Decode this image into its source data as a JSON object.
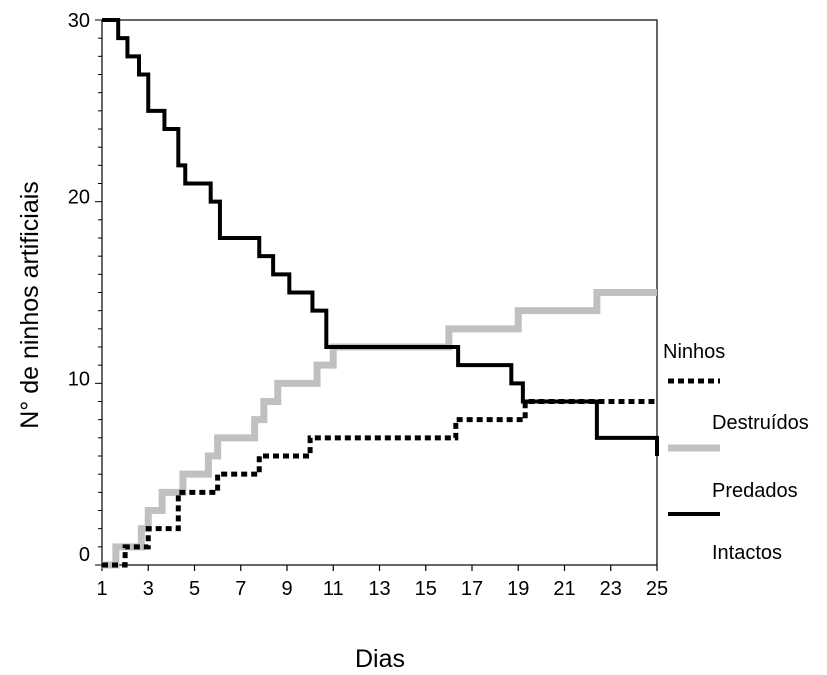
{
  "chart_data": {
    "type": "line",
    "xlabel": "Dias",
    "ylabel": "N° de ninhos artificiais",
    "xlim": [
      1,
      25
    ],
    "ylim": [
      0,
      30
    ],
    "x_ticks": [
      1,
      3,
      5,
      7,
      9,
      11,
      13,
      15,
      17,
      19,
      21,
      23,
      25
    ],
    "y_ticks": [
      0,
      10,
      20,
      30
    ],
    "legend": {
      "title": "Ninhos",
      "placement": "right"
    },
    "series": [
      {
        "name": "Destruídos",
        "style": "dotted",
        "color": "#000000",
        "x": [
          1,
          1.8,
          2,
          2.2,
          3,
          3.3,
          4.3,
          4.5,
          6,
          6.2,
          7.8,
          8,
          10,
          10.2,
          16.3,
          16.5,
          19.3,
          19.5,
          25
        ],
        "y": [
          0,
          0,
          1,
          1,
          2,
          2,
          4,
          4,
          5,
          5,
          6,
          6,
          7,
          7,
          8,
          8,
          9,
          9,
          9
        ]
      },
      {
        "name": "Predados",
        "style": "solid",
        "color": "#c0c0c0",
        "x": [
          1,
          1.6,
          2.7,
          3,
          3.6,
          4.5,
          5.6,
          6,
          7.6,
          8,
          8.6,
          10.3,
          11,
          16,
          19,
          22.4,
          25
        ],
        "y": [
          0,
          1,
          2,
          3,
          4,
          5,
          6,
          7,
          8,
          9,
          10,
          11,
          12,
          13,
          14,
          15,
          15
        ]
      },
      {
        "name": "Intactos",
        "style": "solid",
        "color": "#000000",
        "x": [
          1,
          1.7,
          2.1,
          2.6,
          3,
          3.7,
          4.3,
          4.6,
          5.7,
          6.1,
          7.8,
          8.4,
          9.1,
          10.1,
          10.7,
          16.4,
          18.7,
          19.2,
          22.4,
          25
        ],
        "y": [
          30,
          29,
          28,
          27,
          25,
          24,
          22,
          21,
          20,
          18,
          17,
          16,
          15,
          14,
          12,
          11,
          10,
          9,
          7,
          6
        ]
      }
    ]
  }
}
